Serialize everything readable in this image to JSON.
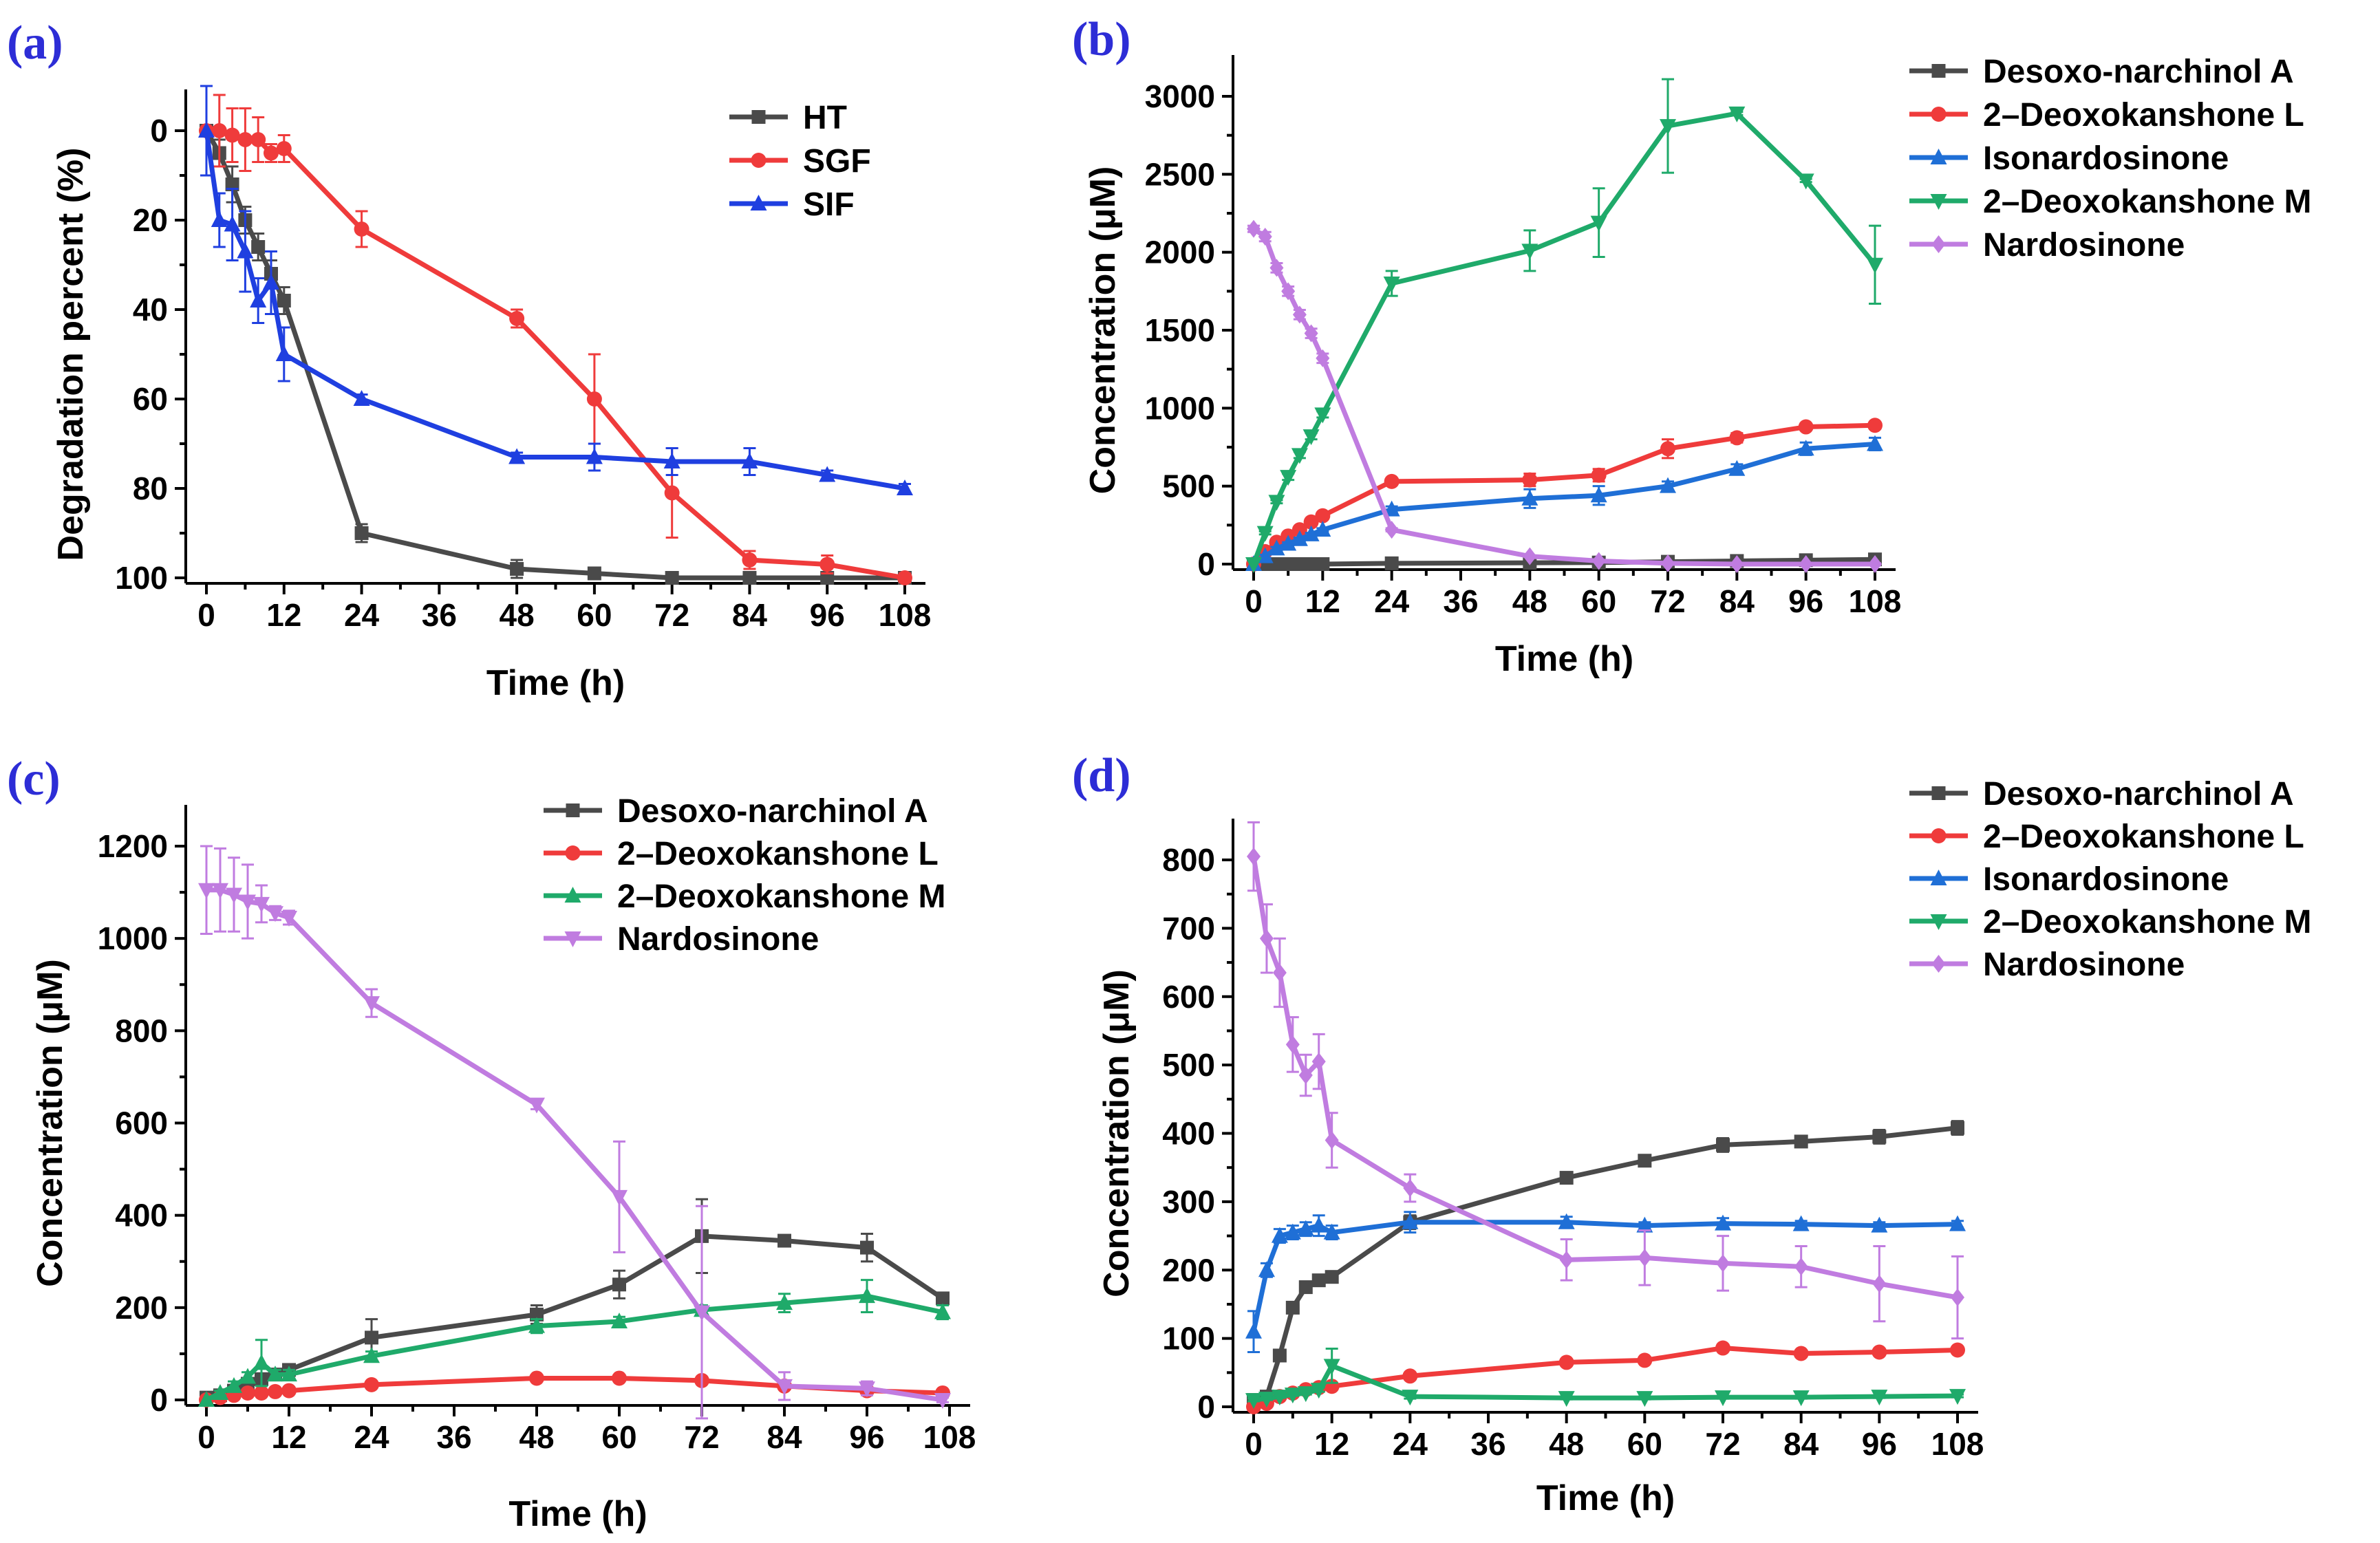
{
  "figure": {
    "chart_data": [
      {
        "panel_label": "(a)",
        "type": "line",
        "xlabel": "Time (h)",
        "ylabel": "Degradation percent (%)",
        "xlim": [
          0,
          108
        ],
        "ylim": [
          0,
          100
        ],
        "y_inverted": true,
        "xticks": [
          "0",
          "12",
          "24",
          "36",
          "48",
          "60",
          "72",
          "84",
          "96",
          "108"
        ],
        "yticks": [
          "0",
          "20",
          "40",
          "60",
          "80",
          "100"
        ],
        "legend_position": "top-right",
        "series": [
          {
            "name": "HT",
            "color": "#4a4a4a",
            "marker": "square",
            "x": [
              0,
              2,
              4,
              6,
              8,
              10,
              12,
              24,
              48,
              60,
              72,
              84,
              96,
              108
            ],
            "y": [
              0,
              5,
              12,
              20,
              26,
              32,
              38,
              90,
              98,
              99,
              100,
              100,
              100,
              100
            ],
            "err": [
              0,
              3,
              4,
              3,
              3,
              3,
              3,
              2,
              2,
              1,
              1,
              1,
              1,
              1
            ]
          },
          {
            "name": "SGF",
            "color": "#ef3b3b",
            "marker": "circle",
            "x": [
              0,
              2,
              4,
              6,
              8,
              10,
              12,
              24,
              48,
              60,
              72,
              84,
              96,
              108
            ],
            "y": [
              0,
              0,
              1,
              2,
              2,
              5,
              4,
              22,
              42,
              60,
              81,
              96,
              97,
              100
            ],
            "err": [
              0,
              8,
              6,
              7,
              5,
              2,
              3,
              4,
              2,
              10,
              10,
              2,
              2,
              1
            ]
          },
          {
            "name": "SIF",
            "color": "#1f3fe0",
            "marker": "triangle-up",
            "x": [
              0,
              2,
              4,
              6,
              8,
              10,
              12,
              24,
              48,
              60,
              72,
              84,
              96,
              108
            ],
            "y": [
              0,
              20,
              21,
              27,
              38,
              34,
              50,
              60,
              73,
              73,
              74,
              74,
              77,
              80
            ],
            "err": [
              10,
              6,
              8,
              9,
              5,
              7,
              6,
              1,
              1,
              3,
              3,
              3,
              1,
              1
            ]
          }
        ]
      },
      {
        "panel_label": "(b)",
        "type": "line",
        "xlabel": "Time (h)",
        "ylabel": "Concentration (μM)",
        "xlim": [
          0,
          108
        ],
        "ylim": [
          0,
          3000
        ],
        "xticks": [
          "0",
          "12",
          "24",
          "36",
          "48",
          "60",
          "72",
          "84",
          "96",
          "108"
        ],
        "yticks": [
          "0",
          "500",
          "1000",
          "1500",
          "2000",
          "2500",
          "3000"
        ],
        "legend_position": "top-right",
        "series": [
          {
            "name": "Desoxo-narchinol A",
            "color": "#4a4a4a",
            "marker": "square",
            "x": [
              0,
              2,
              4,
              6,
              8,
              10,
              12,
              24,
              48,
              60,
              72,
              84,
              96,
              108
            ],
            "y": [
              0,
              0,
              0,
              0,
              0,
              0,
              0,
              5,
              8,
              10,
              15,
              20,
              25,
              30
            ],
            "err": [
              0,
              0,
              0,
              0,
              0,
              0,
              0,
              5,
              5,
              5,
              5,
              5,
              5,
              5
            ]
          },
          {
            "name": "2–Deoxokanshone L",
            "color": "#ef3b3b",
            "marker": "circle",
            "x": [
              0,
              2,
              4,
              6,
              8,
              10,
              12,
              24,
              48,
              60,
              72,
              84,
              96,
              108
            ],
            "y": [
              0,
              80,
              140,
              180,
              220,
              270,
              310,
              530,
              540,
              570,
              740,
              810,
              880,
              890
            ],
            "err": [
              0,
              10,
              10,
              10,
              10,
              10,
              10,
              20,
              40,
              40,
              60,
              30,
              10,
              10
            ]
          },
          {
            "name": "Isonardosinone",
            "color": "#1f6fd6",
            "marker": "triangle-up",
            "x": [
              0,
              2,
              4,
              6,
              8,
              10,
              12,
              24,
              48,
              60,
              72,
              84,
              96,
              108
            ],
            "y": [
              0,
              50,
              100,
              130,
              160,
              190,
              220,
              350,
              420,
              440,
              500,
              610,
              740,
              770
            ],
            "err": [
              0,
              10,
              10,
              10,
              10,
              10,
              10,
              20,
              60,
              60,
              30,
              30,
              40,
              40
            ]
          },
          {
            "name": "2–Deoxokanshone M",
            "color": "#1faa6a",
            "marker": "triangle-down",
            "x": [
              0,
              2,
              4,
              6,
              8,
              10,
              12,
              24,
              48,
              60,
              72,
              84,
              96,
              108
            ],
            "y": [
              0,
              200,
              400,
              560,
              700,
              820,
              960,
              1800,
              2010,
              2190,
              2810,
              2890,
              2460,
              1920
            ],
            "err": [
              0,
              10,
              10,
              20,
              20,
              20,
              20,
              80,
              130,
              220,
              300,
              10,
              10,
              250
            ]
          },
          {
            "name": "Nardosinone",
            "color": "#c07ce0",
            "marker": "diamond",
            "x": [
              0,
              2,
              4,
              6,
              8,
              10,
              12,
              24,
              48,
              60,
              72,
              84,
              96,
              108
            ],
            "y": [
              2150,
              2100,
              1900,
              1750,
              1600,
              1480,
              1320,
              220,
              50,
              20,
              5,
              0,
              0,
              0
            ],
            "err": [
              20,
              30,
              30,
              30,
              30,
              30,
              30,
              10,
              5,
              5,
              5,
              5,
              5,
              5
            ]
          }
        ]
      },
      {
        "panel_label": "(c)",
        "type": "line",
        "xlabel": "Time (h)",
        "ylabel": "Concentration (μM)",
        "xlim": [
          0,
          108
        ],
        "ylim": [
          0,
          1200
        ],
        "xticks": [
          "0",
          "12",
          "24",
          "36",
          "48",
          "60",
          "72",
          "84",
          "96",
          "108"
        ],
        "yticks": [
          "0",
          "200",
          "400",
          "600",
          "800",
          "1000",
          "1200"
        ],
        "legend_position": "top-right",
        "series": [
          {
            "name": "Desoxo-narchinol A",
            "color": "#4a4a4a",
            "marker": "square",
            "x": [
              0,
              2,
              4,
              6,
              8,
              10,
              12,
              24,
              48,
              60,
              72,
              84,
              96,
              107
            ],
            "y": [
              5,
              10,
              20,
              35,
              45,
              55,
              65,
              135,
              185,
              250,
              355,
              345,
              330,
              220
            ],
            "err": [
              2,
              3,
              5,
              5,
              5,
              5,
              5,
              40,
              20,
              30,
              80,
              5,
              30,
              10
            ]
          },
          {
            "name": "2–Deoxokanshone L",
            "color": "#ef3b3b",
            "marker": "circle",
            "x": [
              0,
              2,
              4,
              6,
              8,
              10,
              12,
              24,
              48,
              60,
              72,
              84,
              96,
              107
            ],
            "y": [
              0,
              5,
              10,
              15,
              15,
              18,
              20,
              33,
              47,
              47,
              42,
              30,
              20,
              15
            ],
            "err": [
              0,
              2,
              2,
              2,
              2,
              2,
              2,
              3,
              3,
              3,
              3,
              3,
              3,
              3
            ]
          },
          {
            "name": "2–Deoxokanshone M",
            "color": "#1faa6a",
            "marker": "triangle-up",
            "x": [
              0,
              2,
              4,
              6,
              8,
              10,
              12,
              24,
              48,
              60,
              72,
              84,
              96,
              107
            ],
            "y": [
              0,
              15,
              30,
              50,
              80,
              55,
              55,
              95,
              160,
              170,
              195,
              210,
              225,
              190
            ],
            "err": [
              0,
              5,
              10,
              10,
              50,
              10,
              10,
              10,
              15,
              10,
              10,
              20,
              35,
              15
            ]
          },
          {
            "name": "Nardosinone",
            "color": "#c07ce0",
            "marker": "triangle-down",
            "x": [
              0,
              2,
              4,
              6,
              8,
              10,
              12,
              24,
              48,
              60,
              72,
              84,
              96,
              107
            ],
            "y": [
              1105,
              1105,
              1095,
              1080,
              1075,
              1055,
              1045,
              860,
              640,
              440,
              190,
              30,
              25,
              0
            ],
            "err": [
              95,
              90,
              80,
              80,
              40,
              15,
              15,
              30,
              10,
              120,
              230,
              30,
              15,
              5
            ]
          }
        ]
      },
      {
        "panel_label": "(d)",
        "type": "line",
        "xlabel": "Time (h)",
        "ylabel": "Concentration (μM)",
        "xlim": [
          0,
          108
        ],
        "ylim": [
          0,
          800
        ],
        "xticks": [
          "0",
          "12",
          "24",
          "36",
          "48",
          "60",
          "72",
          "84",
          "96",
          "108"
        ],
        "yticks": [
          "0",
          "100",
          "200",
          "300",
          "400",
          "500",
          "600",
          "700",
          "800"
        ],
        "legend_position": "top-right",
        "series": [
          {
            "name": "Desoxo-narchinol A",
            "color": "#4a4a4a",
            "marker": "square",
            "x": [
              0,
              2,
              4,
              6,
              8,
              10,
              12,
              24,
              48,
              60,
              72,
              84,
              96,
              108
            ],
            "y": [
              10,
              15,
              75,
              145,
              175,
              185,
              190,
              270,
              335,
              360,
              383,
              388,
              395,
              408
            ],
            "err": [
              2,
              2,
              5,
              5,
              5,
              5,
              5,
              10,
              5,
              5,
              10,
              5,
              10,
              10
            ]
          },
          {
            "name": "2–Deoxokanshone L",
            "color": "#ef3b3b",
            "marker": "circle",
            "x": [
              0,
              2,
              4,
              6,
              8,
              10,
              12,
              24,
              48,
              60,
              72,
              84,
              96,
              108
            ],
            "y": [
              0,
              5,
              15,
              20,
              25,
              28,
              30,
              45,
              65,
              68,
              86,
              78,
              80,
              83
            ],
            "err": [
              0,
              2,
              2,
              2,
              2,
              2,
              2,
              3,
              3,
              3,
              3,
              3,
              3,
              3
            ]
          },
          {
            "name": "Isonardosinone",
            "color": "#1f6fd6",
            "marker": "triangle-up",
            "x": [
              0,
              2,
              4,
              6,
              8,
              10,
              12,
              24,
              48,
              60,
              72,
              84,
              96,
              108
            ],
            "y": [
              110,
              200,
              250,
              255,
              260,
              265,
              255,
              270,
              270,
              265,
              268,
              267,
              265,
              267
            ],
            "err": [
              30,
              10,
              10,
              10,
              10,
              15,
              10,
              15,
              8,
              5,
              8,
              5,
              5,
              5
            ]
          },
          {
            "name": "2–Deoxokanshone M",
            "color": "#1faa6a",
            "marker": "triangle-down",
            "x": [
              0,
              2,
              4,
              6,
              8,
              10,
              12,
              24,
              48,
              60,
              72,
              84,
              96,
              108
            ],
            "y": [
              10,
              12,
              15,
              18,
              20,
              25,
              60,
              15,
              13,
              13,
              14,
              14,
              15,
              16
            ],
            "err": [
              2,
              2,
              2,
              2,
              2,
              3,
              25,
              3,
              2,
              2,
              2,
              2,
              2,
              2
            ]
          },
          {
            "name": "Nardosinone",
            "color": "#c07ce0",
            "marker": "diamond",
            "x": [
              0,
              2,
              4,
              6,
              8,
              10,
              12,
              24,
              48,
              60,
              72,
              84,
              96,
              108
            ],
            "y": [
              805,
              685,
              635,
              530,
              485,
              505,
              390,
              320,
              215,
              218,
              210,
              205,
              180,
              160
            ],
            "err": [
              50,
              50,
              50,
              40,
              30,
              40,
              40,
              20,
              30,
              40,
              40,
              30,
              55,
              60
            ]
          }
        ]
      }
    ]
  }
}
